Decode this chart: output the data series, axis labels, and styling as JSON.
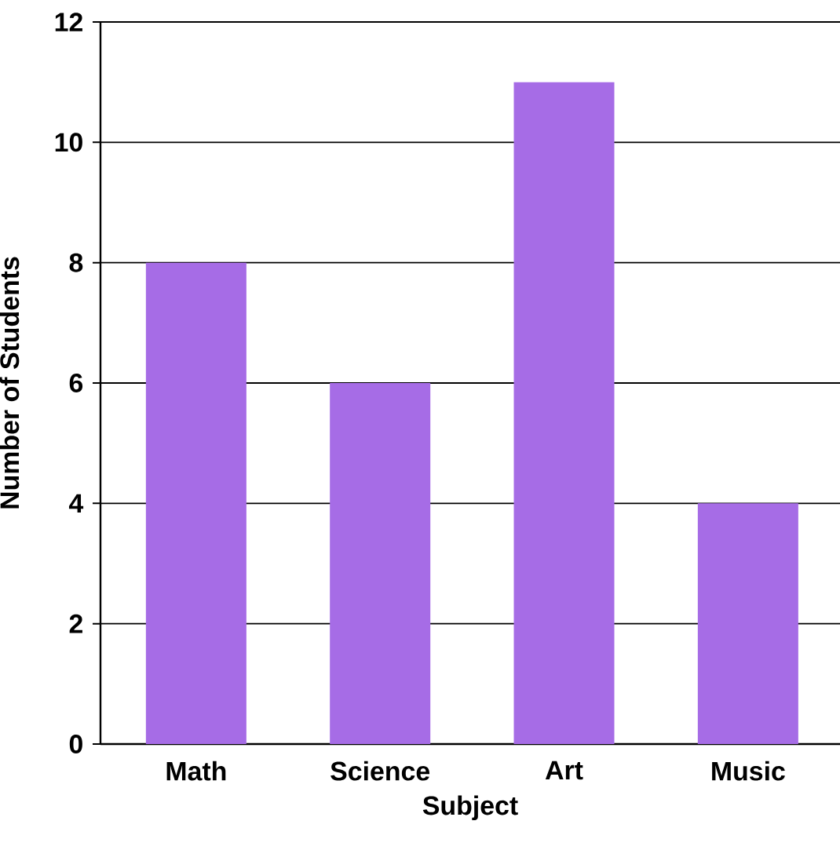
{
  "chart_data": {
    "type": "bar",
    "xlabel": "Subject",
    "ylabel": "Number of Students",
    "categories": [
      "Math",
      "Science",
      "Art",
      "Music"
    ],
    "values": [
      8,
      6,
      11,
      4
    ],
    "color": "#a66ce6",
    "ylim": [
      0,
      12
    ],
    "yticks": [
      0,
      2,
      4,
      6,
      8,
      10,
      12
    ],
    "grid": "y"
  }
}
